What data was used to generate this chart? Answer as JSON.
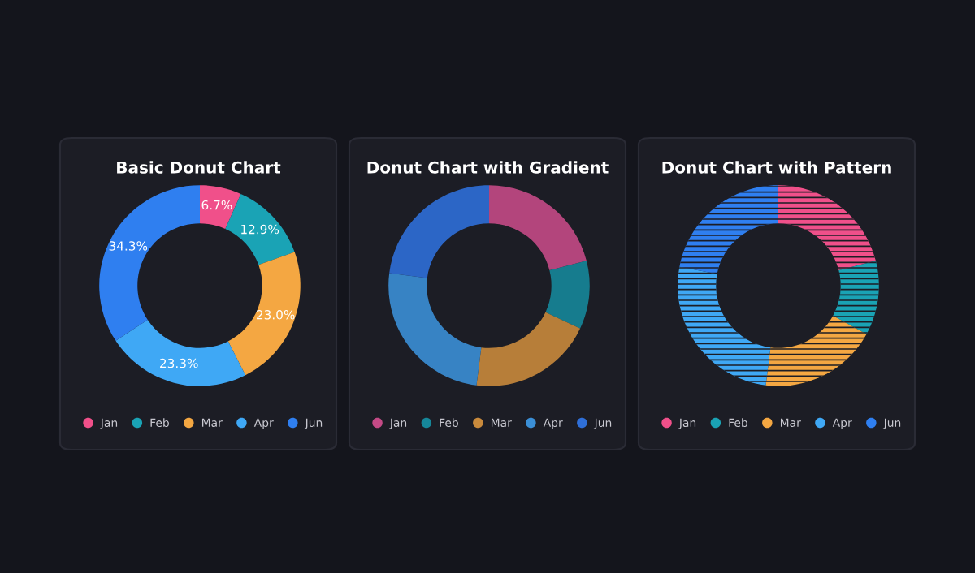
{
  "chart_data": [
    {
      "type": "donut",
      "title": "Basic Donut Chart",
      "categories": [
        "Jan",
        "Feb",
        "Mar",
        "Apr",
        "Jun"
      ],
      "values": [
        6.7,
        12.9,
        23.0,
        23.3,
        34.3
      ],
      "colors": [
        "#f0508a",
        "#1aa3b5",
        "#f4a742",
        "#3fa8f5",
        "#2f7ff0"
      ],
      "value_labels": [
        "6.7%",
        "12.9%",
        "23.0%",
        "23.3%",
        "34.3%"
      ],
      "legend": "bottom"
    },
    {
      "type": "donut",
      "title": "Donut Chart with Gradient",
      "categories": [
        "Jan",
        "Feb",
        "Mar",
        "Apr",
        "Jun"
      ],
      "values": [
        21,
        11,
        20,
        25,
        23
      ],
      "colors": [
        "#c44a86",
        "#16879a",
        "#c98a3c",
        "#3b8fd6",
        "#2f6fd8"
      ],
      "legend": "bottom"
    },
    {
      "type": "donut",
      "title": "Donut Chart with Pattern",
      "categories": [
        "Jan",
        "Feb",
        "Mar",
        "Apr",
        "Jun"
      ],
      "values": [
        21,
        12,
        19,
        26,
        22
      ],
      "colors": [
        "#f0508a",
        "#1aa3b5",
        "#f4a742",
        "#3fa8f5",
        "#2f7ff0"
      ],
      "legend": "bottom"
    }
  ]
}
